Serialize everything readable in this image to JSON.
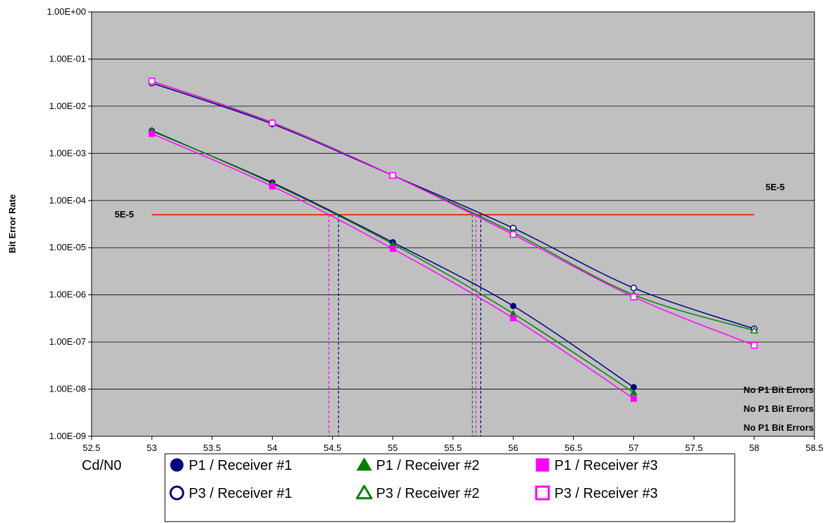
{
  "chart_data": {
    "type": "line",
    "xlabel": "Cd/N0",
    "ylabel": "Bit Error Rate",
    "x_scale": "linear",
    "y_scale": "log",
    "xlim": [
      52.5,
      58.5
    ],
    "ylim": [
      1e-09,
      1
    ],
    "x_ticks": [
      "52.5",
      "53",
      "53.5",
      "54",
      "54.5",
      "55",
      "55.5",
      "56",
      "56.5",
      "57",
      "57.5",
      "58",
      "58.5"
    ],
    "y_ticks": [
      "1.00E+00",
      "1.00E-01",
      "1.00E-02",
      "1.00E-03",
      "1.00E-04",
      "1.00E-05",
      "1.00E-06",
      "1.00E-07",
      "1.00E-08",
      "1.00E-09"
    ],
    "grid": "horizontal",
    "background": "#c0c0c0",
    "series": [
      {
        "name": "P1 / Receiver #1",
        "color": "#000080",
        "marker": "circle-filled",
        "x": [
          53,
          54,
          55,
          56,
          57
        ],
        "y": [
          0.003,
          0.00024,
          1.3e-05,
          5.8e-07,
          1.1e-08
        ]
      },
      {
        "name": "P1 /  Receiver #2",
        "color": "#008000",
        "marker": "triangle-filled",
        "x": [
          53,
          54,
          55,
          56,
          57
        ],
        "y": [
          0.0031,
          0.00023,
          1.2e-05,
          4e-07,
          8.5e-09
        ]
      },
      {
        "name": "P1 /  Receiver #3",
        "color": "#ff00ff",
        "marker": "square-filled",
        "x": [
          53,
          54,
          55,
          56,
          57
        ],
        "y": [
          0.0026,
          0.0002,
          9.5e-06,
          3.2e-07,
          6.3e-09
        ]
      },
      {
        "name": "P3 / Receiver #1",
        "color": "#000080",
        "marker": "circle-open",
        "x": [
          53,
          54,
          55,
          56,
          57,
          58
        ],
        "y": [
          0.031,
          0.0042,
          0.00034,
          2.6e-05,
          1.4e-06,
          1.9e-07
        ]
      },
      {
        "name": "P3 /  Receiver #2",
        "color": "#008000",
        "marker": "triangle-open",
        "x": [
          53,
          54,
          55,
          56,
          57,
          58
        ],
        "y": [
          0.034,
          0.0045,
          0.00034,
          2.1e-05,
          1e-06,
          1.75e-07
        ]
      },
      {
        "name": "P3 /  Receiver #3",
        "color": "#ff00ff",
        "marker": "square-open",
        "x": [
          53,
          54,
          55,
          56,
          57,
          58
        ],
        "y": [
          0.034,
          0.0044,
          0.00034,
          1.9e-05,
          9e-07,
          8.5e-08
        ]
      }
    ],
    "threshold": {
      "value": 5e-05,
      "label_left": "5E-5",
      "label_right": "5E-5",
      "color": "#ff0000",
      "x_range": [
        53,
        58
      ]
    },
    "crossings": [
      {
        "x": 54.47,
        "color": "#ff00ff"
      },
      {
        "x": 54.55,
        "color": "#000080"
      },
      {
        "x": 55.66,
        "color": "#008000"
      },
      {
        "x": 55.69,
        "color": "#ff00ff"
      },
      {
        "x": 55.73,
        "color": "#000080"
      }
    ],
    "annotations": [
      "No P1 Bit Errors",
      "No P1 Bit Errors",
      "No P1 Bit Errors"
    ],
    "legend_placement": "bottom"
  }
}
